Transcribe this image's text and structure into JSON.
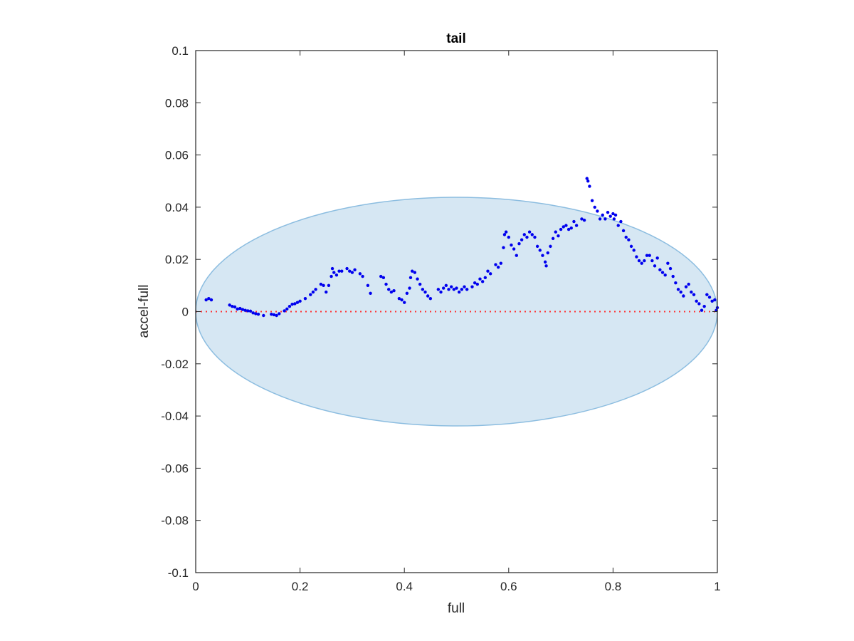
{
  "chart_data": {
    "type": "scatter",
    "title": "tail",
    "xlabel": "full",
    "ylabel": "accel-full",
    "xlim": [
      0,
      1
    ],
    "ylim": [
      -0.1,
      0.1
    ],
    "x_ticks": [
      0,
      0.2,
      0.4,
      0.6,
      0.8,
      1
    ],
    "x_tick_labels": [
      "0",
      "0.2",
      "0.4",
      "0.6",
      "0.8",
      "1"
    ],
    "y_ticks": [
      -0.1,
      -0.08,
      -0.06,
      -0.04,
      -0.02,
      0,
      0.02,
      0.04,
      0.06,
      0.08,
      0.1
    ],
    "y_tick_labels": [
      "-0.1",
      "-0.08",
      "-0.06",
      "-0.04",
      "-0.02",
      "0",
      "0.02",
      "0.04",
      "0.06",
      "0.08",
      "0.1"
    ],
    "grid": false,
    "reference_line": {
      "y": 0,
      "style": "dotted",
      "color": "#ff3333"
    },
    "ellipse": {
      "cx": 0.5,
      "cy": 0,
      "rx": 0.5,
      "ry": 0.0438,
      "fill": "#d6e7f3",
      "stroke": "#8cbde0"
    },
    "series": [
      {
        "color": "#0000ee",
        "points": [
          [
            0.02,
            0.0045
          ],
          [
            0.025,
            0.005
          ],
          [
            0.03,
            0.0045
          ],
          [
            0.065,
            0.0025
          ],
          [
            0.07,
            0.002
          ],
          [
            0.075,
            0.0018
          ],
          [
            0.08,
            0.001
          ],
          [
            0.085,
            0.0012
          ],
          [
            0.09,
            0.0008
          ],
          [
            0.095,
            0.0005
          ],
          [
            0.1,
            0.0003
          ],
          [
            0.105,
            0.0002
          ],
          [
            0.11,
            -0.0005
          ],
          [
            0.115,
            -0.0008
          ],
          [
            0.12,
            -0.001
          ],
          [
            0.13,
            -0.0015
          ],
          [
            0.145,
            -0.001
          ],
          [
            0.15,
            -0.0012
          ],
          [
            0.155,
            -0.0015
          ],
          [
            0.16,
            -0.0008
          ],
          [
            0.17,
            0.0003
          ],
          [
            0.175,
            0.001
          ],
          [
            0.18,
            0.002
          ],
          [
            0.185,
            0.0028
          ],
          [
            0.19,
            0.003
          ],
          [
            0.195,
            0.0035
          ],
          [
            0.2,
            0.004
          ],
          [
            0.21,
            0.005
          ],
          [
            0.22,
            0.0065
          ],
          [
            0.225,
            0.0075
          ],
          [
            0.23,
            0.0085
          ],
          [
            0.24,
            0.0105
          ],
          [
            0.245,
            0.01
          ],
          [
            0.25,
            0.0075
          ],
          [
            0.255,
            0.01
          ],
          [
            0.26,
            0.0135
          ],
          [
            0.262,
            0.0165
          ],
          [
            0.265,
            0.015
          ],
          [
            0.27,
            0.014
          ],
          [
            0.275,
            0.0155
          ],
          [
            0.28,
            0.0155
          ],
          [
            0.29,
            0.0165
          ],
          [
            0.295,
            0.0155
          ],
          [
            0.3,
            0.015
          ],
          [
            0.305,
            0.016
          ],
          [
            0.315,
            0.0145
          ],
          [
            0.32,
            0.0135
          ],
          [
            0.33,
            0.01
          ],
          [
            0.335,
            0.007
          ],
          [
            0.355,
            0.0135
          ],
          [
            0.36,
            0.013
          ],
          [
            0.365,
            0.0105
          ],
          [
            0.37,
            0.0085
          ],
          [
            0.375,
            0.0075
          ],
          [
            0.38,
            0.008
          ],
          [
            0.39,
            0.005
          ],
          [
            0.395,
            0.0045
          ],
          [
            0.4,
            0.0035
          ],
          [
            0.405,
            0.007
          ],
          [
            0.41,
            0.009
          ],
          [
            0.412,
            0.013
          ],
          [
            0.415,
            0.0155
          ],
          [
            0.42,
            0.015
          ],
          [
            0.425,
            0.0125
          ],
          [
            0.43,
            0.0105
          ],
          [
            0.435,
            0.0085
          ],
          [
            0.44,
            0.0075
          ],
          [
            0.445,
            0.006
          ],
          [
            0.45,
            0.005
          ],
          [
            0.465,
            0.0085
          ],
          [
            0.47,
            0.0075
          ],
          [
            0.475,
            0.009
          ],
          [
            0.48,
            0.01
          ],
          [
            0.485,
            0.0085
          ],
          [
            0.49,
            0.0095
          ],
          [
            0.495,
            0.0085
          ],
          [
            0.5,
            0.009
          ],
          [
            0.505,
            0.0075
          ],
          [
            0.51,
            0.0085
          ],
          [
            0.515,
            0.0095
          ],
          [
            0.52,
            0.0085
          ],
          [
            0.53,
            0.0095
          ],
          [
            0.535,
            0.011
          ],
          [
            0.54,
            0.0105
          ],
          [
            0.545,
            0.0125
          ],
          [
            0.55,
            0.0115
          ],
          [
            0.555,
            0.013
          ],
          [
            0.56,
            0.0155
          ],
          [
            0.565,
            0.0145
          ],
          [
            0.575,
            0.018
          ],
          [
            0.58,
            0.017
          ],
          [
            0.585,
            0.0185
          ],
          [
            0.59,
            0.0245
          ],
          [
            0.592,
            0.0295
          ],
          [
            0.595,
            0.0305
          ],
          [
            0.6,
            0.0285
          ],
          [
            0.605,
            0.0255
          ],
          [
            0.61,
            0.024
          ],
          [
            0.615,
            0.0215
          ],
          [
            0.62,
            0.026
          ],
          [
            0.625,
            0.0275
          ],
          [
            0.63,
            0.0295
          ],
          [
            0.635,
            0.0285
          ],
          [
            0.64,
            0.0305
          ],
          [
            0.645,
            0.0295
          ],
          [
            0.65,
            0.0285
          ],
          [
            0.655,
            0.025
          ],
          [
            0.66,
            0.0235
          ],
          [
            0.665,
            0.0215
          ],
          [
            0.67,
            0.019
          ],
          [
            0.672,
            0.0175
          ],
          [
            0.675,
            0.0225
          ],
          [
            0.68,
            0.025
          ],
          [
            0.685,
            0.028
          ],
          [
            0.69,
            0.0305
          ],
          [
            0.695,
            0.029
          ],
          [
            0.7,
            0.0315
          ],
          [
            0.705,
            0.0325
          ],
          [
            0.71,
            0.033
          ],
          [
            0.715,
            0.0315
          ],
          [
            0.72,
            0.032
          ],
          [
            0.725,
            0.0345
          ],
          [
            0.73,
            0.033
          ],
          [
            0.74,
            0.0355
          ],
          [
            0.745,
            0.035
          ],
          [
            0.75,
            0.051
          ],
          [
            0.752,
            0.05
          ],
          [
            0.755,
            0.048
          ],
          [
            0.76,
            0.0425
          ],
          [
            0.765,
            0.04
          ],
          [
            0.77,
            0.0385
          ],
          [
            0.775,
            0.0355
          ],
          [
            0.78,
            0.037
          ],
          [
            0.785,
            0.0355
          ],
          [
            0.79,
            0.038
          ],
          [
            0.795,
            0.0365
          ],
          [
            0.8,
            0.0375
          ],
          [
            0.802,
            0.0355
          ],
          [
            0.805,
            0.037
          ],
          [
            0.81,
            0.033
          ],
          [
            0.815,
            0.0345
          ],
          [
            0.82,
            0.031
          ],
          [
            0.825,
            0.0285
          ],
          [
            0.83,
            0.0275
          ],
          [
            0.835,
            0.025
          ],
          [
            0.84,
            0.0235
          ],
          [
            0.845,
            0.021
          ],
          [
            0.85,
            0.0195
          ],
          [
            0.855,
            0.0185
          ],
          [
            0.86,
            0.0195
          ],
          [
            0.865,
            0.0215
          ],
          [
            0.87,
            0.0215
          ],
          [
            0.875,
            0.0195
          ],
          [
            0.88,
            0.0175
          ],
          [
            0.885,
            0.0205
          ],
          [
            0.89,
            0.016
          ],
          [
            0.895,
            0.015
          ],
          [
            0.9,
            0.014
          ],
          [
            0.905,
            0.0185
          ],
          [
            0.91,
            0.0165
          ],
          [
            0.915,
            0.0135
          ],
          [
            0.92,
            0.011
          ],
          [
            0.925,
            0.0085
          ],
          [
            0.93,
            0.0075
          ],
          [
            0.935,
            0.006
          ],
          [
            0.94,
            0.0095
          ],
          [
            0.945,
            0.0105
          ],
          [
            0.95,
            0.0075
          ],
          [
            0.955,
            0.0065
          ],
          [
            0.96,
            0.004
          ],
          [
            0.965,
            0.003
          ],
          [
            0.97,
            0.0005
          ],
          [
            0.975,
            0.002
          ],
          [
            0.98,
            0.0065
          ],
          [
            0.985,
            0.0055
          ],
          [
            0.99,
            0.004
          ],
          [
            0.995,
            0.0045
          ],
          [
            1.0,
            0.0015
          ],
          [
            0.998,
            0.0005
          ]
        ]
      }
    ]
  }
}
